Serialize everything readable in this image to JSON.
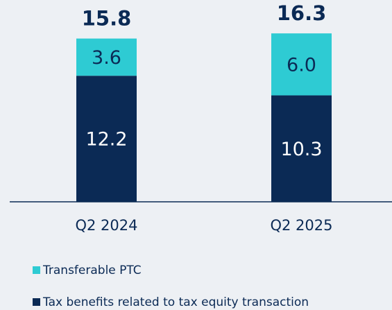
{
  "chart_data": {
    "type": "stacked_bar",
    "categories": [
      "Q2 2024",
      "Q2 2025"
    ],
    "totals": [
      15.8,
      16.3
    ],
    "series": [
      {
        "name": "Tax benefits related to tax equity transaction",
        "color": "#0b2a55",
        "values": [
          12.2,
          10.3
        ]
      },
      {
        "name": "Transferable PTC",
        "color": "#2ecbd3",
        "values": [
          3.6,
          6.0
        ],
        "value_labels": [
          "3.6",
          "6.0"
        ]
      }
    ]
  }
}
